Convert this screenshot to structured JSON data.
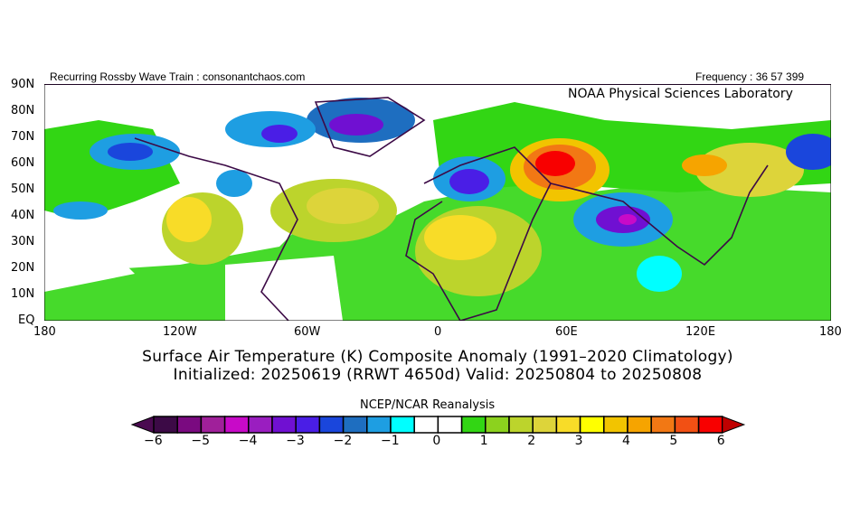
{
  "header": {
    "left": "Recurring Rossby Wave Train : consonantchaos.com",
    "right": "Frequency : 36 57 399",
    "lab": "NOAA Physical Sciences Laboratory"
  },
  "map": {
    "lat_labels": [
      "90N",
      "80N",
      "70N",
      "60N",
      "50N",
      "40N",
      "30N",
      "20N",
      "10N",
      "EQ"
    ],
    "lon_labels": [
      "180",
      "120W",
      "60W",
      "0",
      "60E",
      "120E",
      "180"
    ],
    "extent": {
      "lon": [
        -180,
        180
      ],
      "lat": [
        0,
        90
      ]
    }
  },
  "titles": {
    "line1": "Surface Air Temperature (K) Composite Anomaly (1991–2020 Climatology)",
    "line2": "Initialized: 20250619 (RRWT 4650d) Valid: 20250804 to 20250808"
  },
  "colorbar": {
    "title": "NCEP/NCAR Reanalysis",
    "ticks": [
      "−6",
      "−5",
      "−4",
      "−3",
      "−2",
      "−1",
      "0",
      "1",
      "2",
      "3",
      "4",
      "5",
      "6"
    ],
    "colors": [
      "#3c0a46",
      "#7a0a80",
      "#a0209a",
      "#c80ac8",
      "#9a1ec0",
      "#7010d2",
      "#4a1ee6",
      "#1a46dc",
      "#1e6ec0",
      "#1e9ee2",
      "#00ffff",
      "#ffffff",
      "#ffffff",
      "#32d614",
      "#8cd21e",
      "#bcd42c",
      "#ddd43a",
      "#f8dc28",
      "#ffff00",
      "#f2c400",
      "#f6a400",
      "#f27814",
      "#f25014",
      "#f80000"
    ],
    "under_color": "#4a0a50",
    "over_color": "#c00000"
  }
}
